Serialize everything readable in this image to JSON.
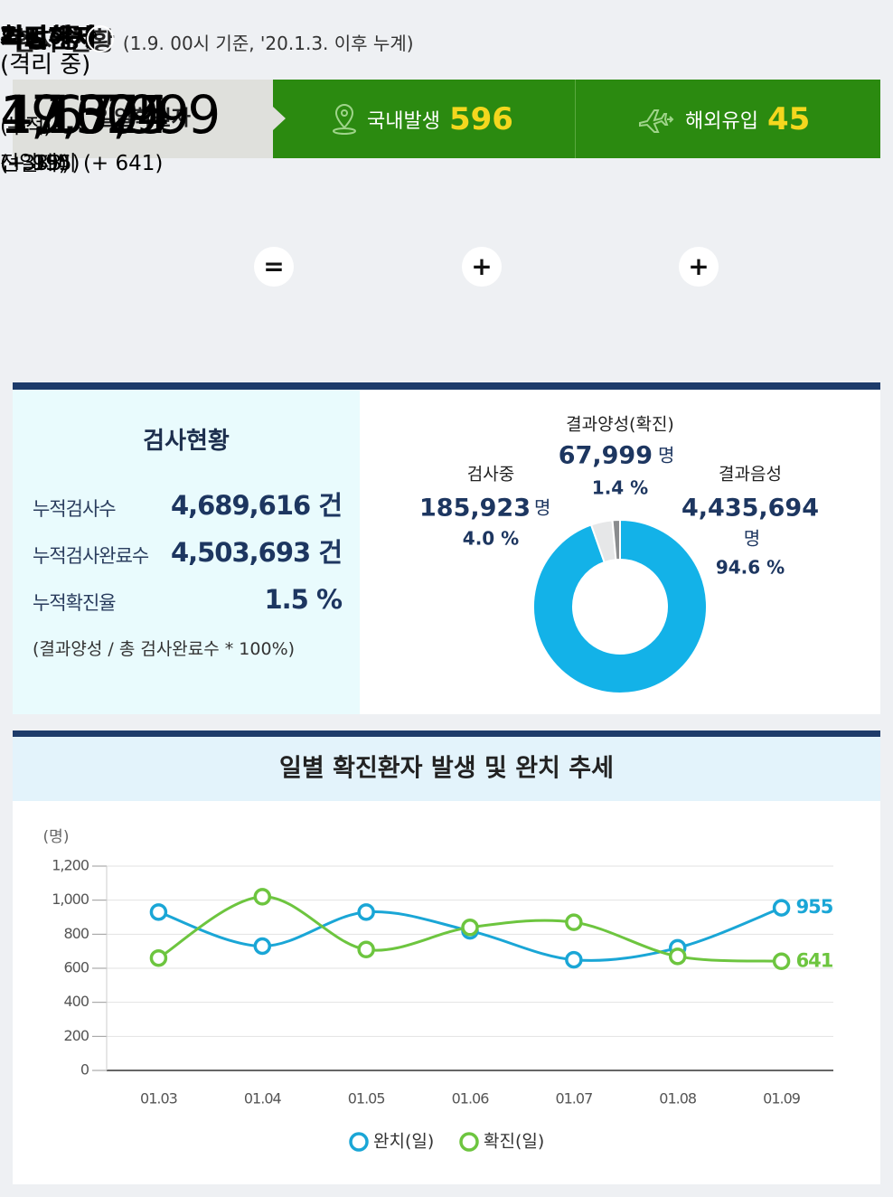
{
  "header": {
    "title": "환자 현황",
    "subtitle": "(1.9. 00시 기준, '20.1.3. 이후 누계)"
  },
  "daily": {
    "label": "일일확진자",
    "domestic_label": "국내발생",
    "domestic_value": "596",
    "overseas_label": "해외유입",
    "overseas_value": "45"
  },
  "cards": [
    {
      "title": "확진환자",
      "prefix": "(누적)",
      "value": "67,999",
      "change": "전일대비 (+ 641)"
    },
    {
      "title": "격리해제",
      "value": "49,324",
      "change": "(+ 955)"
    },
    {
      "title": "치료 중",
      "help": "?",
      "note": "(격리 중)",
      "value": "17,575",
      "change": "(- 333)"
    },
    {
      "title": "사망",
      "value": "1,100",
      "change": "(+ 19)"
    }
  ],
  "operators": [
    "=",
    "+",
    "+"
  ],
  "tests": {
    "title": "검사현황",
    "rows": [
      {
        "label": "누적검사수",
        "value": "4,689,616 건"
      },
      {
        "label": "누적검사완료수",
        "value": "4,503,693 건"
      },
      {
        "label": "누적확진율",
        "value": "1.5 %"
      }
    ],
    "note": "(결과양성 / 총 검사완료수 * 100%)"
  },
  "chart_data": [
    {
      "type": "pie",
      "categories": [
        "결과음성",
        "검사중",
        "결과양성(확진)"
      ],
      "values": [
        94.6,
        4.0,
        1.4
      ],
      "value_labels": [
        "94.6 %",
        "4.0 %",
        "1.4 %"
      ],
      "counts": [
        "4,435,694",
        "185,923",
        "67,999"
      ],
      "count_unit": "명",
      "colors": [
        "#13b2e8",
        "#e6e7e8",
        "#8a8c8e"
      ],
      "donut": true
    },
    {
      "type": "line",
      "title": "일별 확진환자 발생 및 완치 추세",
      "y_label": "(명)",
      "categories": [
        "01.03",
        "01.04",
        "01.05",
        "01.06",
        "01.07",
        "01.08",
        "01.09"
      ],
      "series": [
        {
          "name": "완치(일)",
          "color": "#1aa6d6",
          "values": [
            930,
            730,
            930,
            820,
            650,
            720,
            955
          ]
        },
        {
          "name": "확진(일)",
          "color": "#6dc53f",
          "values": [
            660,
            1020,
            710,
            840,
            870,
            670,
            641
          ]
        }
      ],
      "ylim": [
        0,
        1200
      ],
      "yticks": [
        0,
        200,
        400,
        600,
        800,
        {
          "value": 1000,
          "label": "1,000"
        },
        {
          "value": 1200,
          "label": "1,200"
        }
      ],
      "grid": true,
      "smooth": true
    }
  ]
}
